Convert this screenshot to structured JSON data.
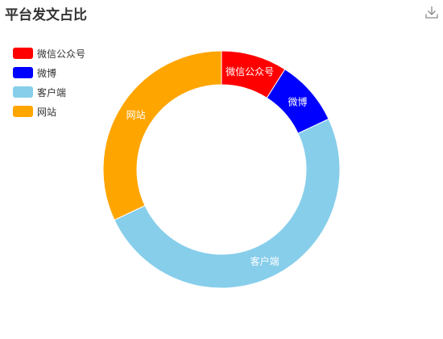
{
  "chart_data": {
    "type": "pie",
    "title": "平台发文占比",
    "donut": true,
    "series": [
      {
        "name": "微信公众号",
        "value": 9,
        "color": "#ff0000"
      },
      {
        "name": "微博",
        "value": 9,
        "color": "#0000ff"
      },
      {
        "name": "客户端",
        "value": 50,
        "color": "#87ceeb"
      },
      {
        "name": "网站",
        "value": 32,
        "color": "#ffa500"
      }
    ],
    "legend_position": "top-left",
    "labels_inside": true
  },
  "toolbar": {
    "download_icon": "download-icon"
  }
}
